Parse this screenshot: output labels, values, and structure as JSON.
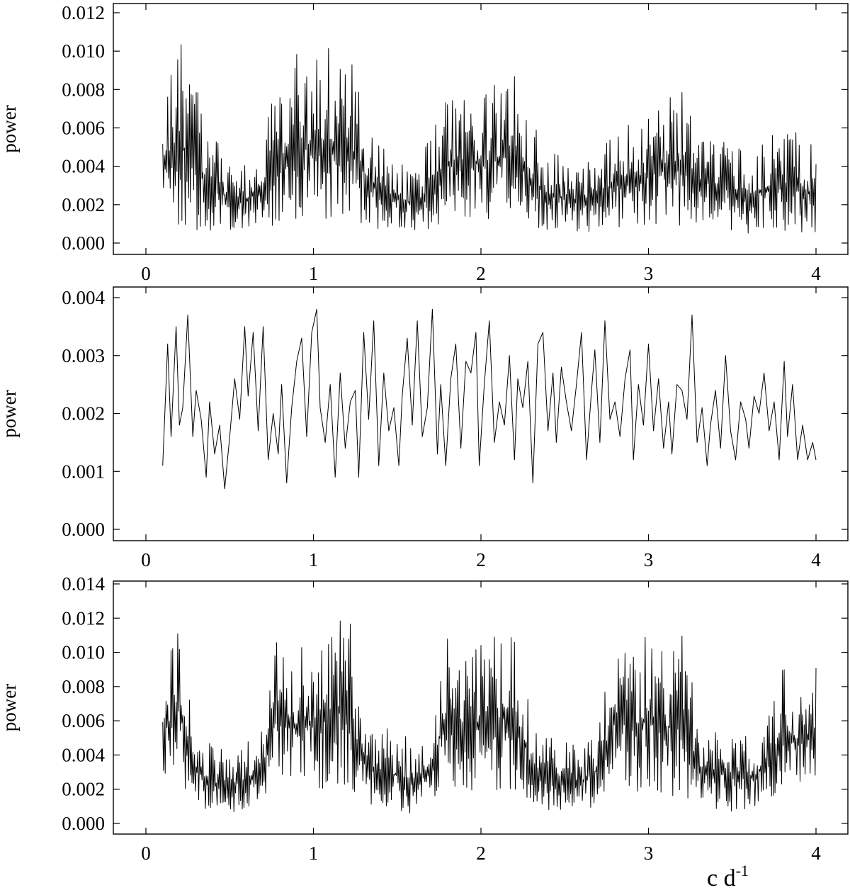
{
  "xaxis_unit": {
    "base": "c d",
    "sup": "-1"
  },
  "chart_data": [
    {
      "type": "line",
      "title": "",
      "xlabel": "",
      "ylabel": "power",
      "xlim": [
        0,
        4
      ],
      "ylim": [
        0,
        0.012
      ],
      "xticks": [
        0,
        1,
        2,
        3,
        4
      ],
      "xtick_labels": [
        "0",
        "1",
        "2",
        "3",
        "4"
      ],
      "yticks": [
        0,
        0.002,
        0.004,
        0.006,
        0.008,
        0.01,
        0.012
      ],
      "ytick_labels": [
        "0.000",
        "0.002",
        "0.004",
        "0.006",
        "0.008",
        "0.010",
        "0.012"
      ],
      "grid": false,
      "series": [
        {
          "x_range": [
            0.1,
            4.0
          ],
          "step": 0.005,
          "envelope": {
            "x": [
              0.1,
              0.2,
              0.3,
              0.4,
              0.5,
              0.6,
              0.7,
              0.8,
              0.9,
              1.0,
              1.1,
              1.2,
              1.3,
              1.4,
              1.5,
              1.6,
              1.7,
              1.8,
              1.9,
              2.0,
              2.1,
              2.2,
              2.3,
              2.4,
              2.5,
              2.6,
              2.7,
              2.8,
              2.9,
              3.0,
              3.1,
              3.2,
              3.3,
              3.4,
              3.5,
              3.6,
              3.7,
              3.8,
              3.9,
              4.0
            ],
            "high": [
              0.009,
              0.0108,
              0.0085,
              0.0055,
              0.0045,
              0.0042,
              0.006,
              0.0085,
              0.0102,
              0.0098,
              0.0102,
              0.0108,
              0.007,
              0.0052,
              0.0045,
              0.004,
              0.0055,
              0.008,
              0.0085,
              0.0078,
              0.0085,
              0.0095,
              0.0065,
              0.005,
              0.0045,
              0.0042,
              0.0052,
              0.006,
              0.0065,
              0.007,
              0.0075,
              0.0085,
              0.0065,
              0.006,
              0.0055,
              0.005,
              0.0058,
              0.006,
              0.0058,
              0.005
            ],
            "low": [
              0.0008,
              0.0007,
              0.0005,
              0.0006,
              0.0006,
              0.0007,
              0.0008,
              0.001,
              0.0012,
              0.0012,
              0.0012,
              0.001,
              0.001,
              0.0007,
              0.0006,
              0.0004,
              0.0006,
              0.0009,
              0.001,
              0.001,
              0.0009,
              0.0008,
              0.0008,
              0.0006,
              0.0006,
              0.0005,
              0.0006,
              0.0007,
              0.0008,
              0.001,
              0.0009,
              0.0008,
              0.0008,
              0.0006,
              0.0006,
              0.0005,
              0.0005,
              0.0005,
              0.0005,
              0.0005
            ]
          }
        }
      ]
    },
    {
      "type": "line",
      "title": "",
      "xlabel": "",
      "ylabel": "power",
      "xlim": [
        0,
        4
      ],
      "ylim": [
        0,
        0.004
      ],
      "xticks": [
        0,
        1,
        2,
        3,
        4
      ],
      "xtick_labels": [
        "0",
        "1",
        "2",
        "3",
        "4"
      ],
      "yticks": [
        0,
        0.001,
        0.002,
        0.003,
        0.004
      ],
      "ytick_labels": [
        "0.000",
        "0.001",
        "0.002",
        "0.003",
        "0.004"
      ],
      "grid": false,
      "series": [
        {
          "x": [
            0.1,
            0.13,
            0.15,
            0.18,
            0.2,
            0.22,
            0.25,
            0.28,
            0.3,
            0.33,
            0.36,
            0.38,
            0.41,
            0.44,
            0.47,
            0.5,
            0.53,
            0.56,
            0.59,
            0.61,
            0.64,
            0.67,
            0.7,
            0.73,
            0.76,
            0.79,
            0.81,
            0.84,
            0.87,
            0.9,
            0.93,
            0.96,
            0.99,
            1.02,
            1.04,
            1.07,
            1.1,
            1.13,
            1.16,
            1.19,
            1.22,
            1.25,
            1.27,
            1.3,
            1.33,
            1.36,
            1.39,
            1.42,
            1.45,
            1.48,
            1.51,
            1.53,
            1.56,
            1.59,
            1.62,
            1.65,
            1.68,
            1.71,
            1.74,
            1.76,
            1.79,
            1.82,
            1.85,
            1.88,
            1.91,
            1.94,
            1.97,
            1.99,
            2.02,
            2.05,
            2.08,
            2.11,
            2.14,
            2.17,
            2.2,
            2.22,
            2.25,
            2.28,
            2.31,
            2.34,
            2.37,
            2.4,
            2.43,
            2.45,
            2.48,
            2.51,
            2.54,
            2.57,
            2.6,
            2.63,
            2.66,
            2.68,
            2.71,
            2.74,
            2.77,
            2.8,
            2.83,
            2.86,
            2.89,
            2.91,
            2.94,
            2.97,
            3.0,
            3.03,
            3.06,
            3.09,
            3.12,
            3.14,
            3.17,
            3.2,
            3.23,
            3.26,
            3.29,
            3.32,
            3.35,
            3.37,
            3.4,
            3.43,
            3.46,
            3.49,
            3.52,
            3.55,
            3.58,
            3.6,
            3.63,
            3.66,
            3.69,
            3.72,
            3.75,
            3.78,
            3.81,
            3.83,
            3.86,
            3.89,
            3.92,
            3.95,
            3.98,
            4.0
          ],
          "y": [
            0.0011,
            0.0032,
            0.0016,
            0.0035,
            0.0018,
            0.0021,
            0.0037,
            0.0016,
            0.0024,
            0.0019,
            0.0009,
            0.0022,
            0.0013,
            0.0018,
            0.0007,
            0.0016,
            0.0026,
            0.0019,
            0.0035,
            0.0023,
            0.0034,
            0.0017,
            0.0035,
            0.0012,
            0.002,
            0.0013,
            0.0025,
            0.0008,
            0.0021,
            0.0029,
            0.0033,
            0.0016,
            0.0034,
            0.0038,
            0.0021,
            0.0015,
            0.0025,
            0.0009,
            0.0027,
            0.0014,
            0.0022,
            0.0024,
            0.0009,
            0.0034,
            0.0019,
            0.0036,
            0.0011,
            0.0027,
            0.0017,
            0.0021,
            0.0011,
            0.0023,
            0.0033,
            0.0018,
            0.0036,
            0.0016,
            0.0021,
            0.0038,
            0.0013,
            0.0025,
            0.0011,
            0.0026,
            0.0032,
            0.0014,
            0.0029,
            0.0027,
            0.0034,
            0.0011,
            0.0025,
            0.0036,
            0.0015,
            0.0022,
            0.0018,
            0.003,
            0.0012,
            0.0026,
            0.0021,
            0.0029,
            0.0008,
            0.0032,
            0.0034,
            0.0017,
            0.0027,
            0.0015,
            0.0028,
            0.0022,
            0.0017,
            0.0025,
            0.0034,
            0.0012,
            0.0024,
            0.0031,
            0.0015,
            0.0036,
            0.0019,
            0.0022,
            0.0016,
            0.0026,
            0.0031,
            0.0012,
            0.0025,
            0.0018,
            0.0032,
            0.0017,
            0.0026,
            0.0014,
            0.0022,
            0.0013,
            0.0025,
            0.0024,
            0.0019,
            0.0037,
            0.0015,
            0.0021,
            0.0011,
            0.0018,
            0.0024,
            0.0014,
            0.003,
            0.0017,
            0.0012,
            0.0022,
            0.0019,
            0.0014,
            0.0023,
            0.002,
            0.0027,
            0.0017,
            0.0022,
            0.0012,
            0.0029,
            0.0016,
            0.0025,
            0.0012,
            0.0018,
            0.0012,
            0.0015,
            0.0012
          ]
        }
      ]
    },
    {
      "type": "line",
      "title": "",
      "xlabel": "",
      "ylabel": "power",
      "xlim": [
        0,
        4
      ],
      "ylim": [
        0,
        0.014
      ],
      "xticks": [
        0,
        1,
        2,
        3,
        4
      ],
      "xtick_labels": [
        "0",
        "1",
        "2",
        "3",
        "4"
      ],
      "yticks": [
        0,
        0.002,
        0.004,
        0.006,
        0.008,
        0.01,
        0.012,
        0.014
      ],
      "ytick_labels": [
        "0.000",
        "0.002",
        "0.004",
        "0.006",
        "0.008",
        "0.010",
        "0.012",
        "0.014"
      ],
      "grid": false,
      "series": [
        {
          "x_range": [
            0.1,
            4.0
          ],
          "step": 0.005,
          "envelope": {
            "x": [
              0.1,
              0.2,
              0.3,
              0.4,
              0.5,
              0.6,
              0.7,
              0.8,
              0.9,
              1.0,
              1.1,
              1.2,
              1.3,
              1.4,
              1.5,
              1.6,
              1.7,
              1.8,
              1.9,
              2.0,
              2.1,
              2.2,
              2.3,
              2.4,
              2.5,
              2.6,
              2.7,
              2.8,
              2.9,
              3.0,
              3.1,
              3.2,
              3.3,
              3.4,
              3.5,
              3.6,
              3.7,
              3.8,
              3.9,
              4.0
            ],
            "high": [
              0.008,
              0.0128,
              0.0055,
              0.0045,
              0.0045,
              0.0048,
              0.0055,
              0.0125,
              0.0105,
              0.011,
              0.0108,
              0.013,
              0.0065,
              0.0058,
              0.0055,
              0.005,
              0.006,
              0.0118,
              0.0095,
              0.0108,
              0.0112,
              0.0128,
              0.006,
              0.0055,
              0.005,
              0.0048,
              0.0058,
              0.0112,
              0.0105,
              0.011,
              0.0105,
              0.012,
              0.006,
              0.0058,
              0.0055,
              0.005,
              0.006,
              0.0098,
              0.0085,
              0.0101
            ],
            "low": [
              0.0028,
              0.0025,
              0.001,
              0.0006,
              0.0005,
              0.0008,
              0.0015,
              0.0022,
              0.0018,
              0.002,
              0.002,
              0.0018,
              0.0012,
              0.0008,
              0.0006,
              0.0006,
              0.0012,
              0.002,
              0.0018,
              0.002,
              0.0018,
              0.0016,
              0.0012,
              0.0008,
              0.0006,
              0.0006,
              0.001,
              0.002,
              0.0018,
              0.002,
              0.0016,
              0.0012,
              0.001,
              0.0008,
              0.0006,
              0.0005,
              0.0012,
              0.002,
              0.0018,
              0.002
            ]
          }
        }
      ]
    }
  ]
}
